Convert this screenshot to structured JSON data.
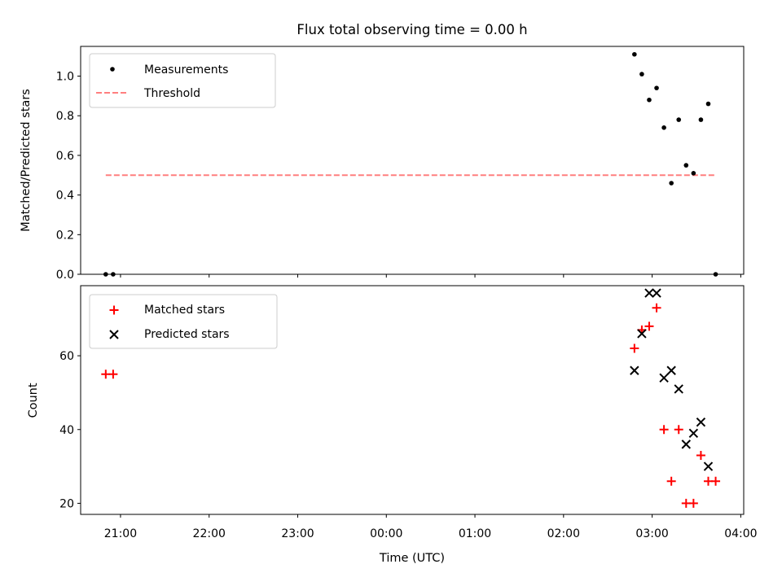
{
  "chart_data": [
    {
      "type": "scatter",
      "title": "Flux total observing time = 0.00 h",
      "ylabel": "Matched/Predicted stars",
      "ylim": [
        0,
        1.15
      ],
      "yticks": [
        0,
        0.2,
        0.4,
        0.6,
        0.8,
        1.0
      ],
      "ytick_labels": [
        "0.0",
        "0.2",
        "0.4",
        "0.6",
        "0.8",
        "1.0"
      ],
      "legend_position": "top-left",
      "series": [
        {
          "name": "Measurements",
          "marker": "dot",
          "color": "#000000",
          "x": [
            "20:50",
            "20:55",
            "02:48",
            "02:53",
            "02:58",
            "03:03",
            "03:08",
            "03:13",
            "03:18",
            "03:23",
            "03:28",
            "03:33",
            "03:38",
            "03:43"
          ],
          "values": [
            0.0,
            0.0,
            1.11,
            1.01,
            0.88,
            0.94,
            0.74,
            0.46,
            0.78,
            0.55,
            0.51,
            0.78,
            0.86,
            0.0
          ]
        },
        {
          "name": "Threshold",
          "line_style": "dashed",
          "color": "#ff7f7f",
          "x": [
            "20:50",
            "03:43"
          ],
          "values": [
            0.5,
            0.5
          ]
        }
      ]
    },
    {
      "type": "scatter",
      "xlabel": "Time (UTC)",
      "ylabel": "Count",
      "ylim": [
        17,
        79
      ],
      "yticks": [
        20,
        40,
        60
      ],
      "ytick_labels": [
        "20",
        "40",
        "60"
      ],
      "xlim": [
        "20:33",
        "04:02"
      ],
      "xticks": [
        "21:00",
        "22:00",
        "23:00",
        "00:00",
        "01:00",
        "02:00",
        "03:00",
        "04:00"
      ],
      "legend_position": "top-left",
      "series": [
        {
          "name": "Matched stars",
          "marker": "plus",
          "color": "#ff0000",
          "x": [
            "20:50",
            "20:55",
            "02:48",
            "02:53",
            "02:58",
            "03:03",
            "03:08",
            "03:13",
            "03:18",
            "03:23",
            "03:28",
            "03:33",
            "03:38",
            "03:43"
          ],
          "values": [
            55,
            55,
            62,
            67,
            68,
            73,
            40,
            26,
            40,
            20,
            20,
            33,
            26,
            26
          ]
        },
        {
          "name": "Predicted stars",
          "marker": "x",
          "color": "#000000",
          "x": [
            "02:48",
            "02:53",
            "02:58",
            "03:03",
            "03:08",
            "03:13",
            "03:18",
            "03:23",
            "03:28",
            "03:33",
            "03:38"
          ],
          "values": [
            56,
            66,
            77,
            77,
            54,
            56,
            51,
            36,
            39,
            42,
            30
          ]
        }
      ]
    }
  ]
}
